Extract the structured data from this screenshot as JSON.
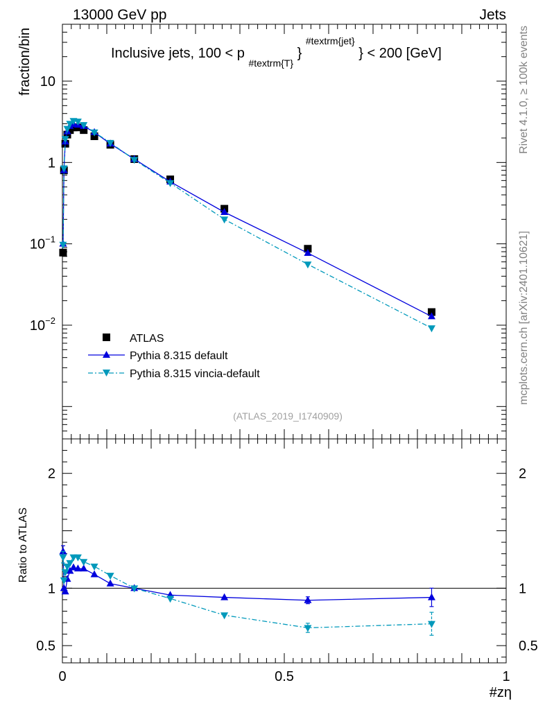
{
  "header": {
    "left": "13000 GeV pp",
    "right": "Jets"
  },
  "side_labels": {
    "rivet": "Rivet 4.1.0, ≥ 100k events",
    "mcplots": "mcplots.cern.ch [arXiv:2401.10621]"
  },
  "chart_data": {
    "type": "scatter",
    "title": "Inclusive jets, 100 < p",
    "title_sub": "#textrm{T}",
    "title_sup": "#textrm{jet}",
    "title_tail": "} < 200 [GeV]",
    "ylabel": "fraction/bin",
    "xlabel": "#zη",
    "ratio_ylabel": "Ratio to ATLAS",
    "analysis_id": "(ATLAS_2019_I1740909)",
    "xlim": [
      0,
      1
    ],
    "ylim_main": [
      0.0004,
      50
    ],
    "ylim_ratio": [
      0.35,
      2.3
    ],
    "x_ticks": [
      {
        "value": 0,
        "label": "0"
      },
      {
        "value": 0.5,
        "label": "0.5"
      },
      {
        "value": 1,
        "label": "1"
      }
    ],
    "y_ticks_main": [
      {
        "value": 10,
        "base": "10",
        "exp": ""
      },
      {
        "value": 1,
        "base": "1",
        "exp": ""
      },
      {
        "value": 0.1,
        "base": "10",
        "exp": "−1"
      },
      {
        "value": 0.01,
        "base": "10",
        "exp": "−2"
      }
    ],
    "y_ticks_ratio": [
      {
        "value": 2,
        "label": "2"
      },
      {
        "value": 1,
        "label": "1"
      },
      {
        "value": 0.5,
        "label": "0.5"
      }
    ],
    "legend": [
      {
        "name": "ATLAS",
        "marker": "square",
        "color": "#000000"
      },
      {
        "name": "Pythia 8.315 default",
        "marker": "triangle-up",
        "color": "#0000dd"
      },
      {
        "name": "Pythia 8.315 vincia-default",
        "marker": "triangle-down",
        "color": "#0099bb"
      }
    ],
    "series": [
      {
        "name": "ATLAS",
        "color": "#000000",
        "x": [
          0.0015,
          0.0035,
          0.0065,
          0.011,
          0.017,
          0.025,
          0.035,
          0.048,
          0.072,
          0.108,
          0.162,
          0.243,
          0.365,
          0.553,
          0.832
        ],
        "y": [
          0.078,
          0.8,
          1.7,
          2.2,
          2.5,
          2.7,
          2.7,
          2.5,
          2.1,
          1.65,
          1.1,
          0.62,
          0.27,
          0.087,
          0.0145
        ]
      },
      {
        "name": "Pythia 8.315 default",
        "color": "#0000dd",
        "x": [
          0.0015,
          0.0035,
          0.0065,
          0.011,
          0.017,
          0.025,
          0.035,
          0.048,
          0.072,
          0.108,
          0.162,
          0.243,
          0.365,
          0.553,
          0.832
        ],
        "y": [
          0.1,
          0.8,
          1.8,
          2.4,
          2.8,
          2.95,
          2.9,
          2.8,
          2.35,
          1.7,
          1.1,
          0.58,
          0.245,
          0.077,
          0.0128
        ],
        "ratio": [
          1.32,
          1.0,
          0.97,
          1.08,
          1.15,
          1.18,
          1.17,
          1.17,
          1.12,
          1.04,
          1.0,
          0.94,
          0.92,
          0.895,
          0.92
        ],
        "ratio_err": [
          0.05,
          0.02,
          0.02,
          0.02,
          0.02,
          0.02,
          0.02,
          0.02,
          0.02,
          0.02,
          0.02,
          0.02,
          0.02,
          0.03,
          0.08
        ]
      },
      {
        "name": "Pythia 8.315 vincia-default",
        "color": "#0099bb",
        "x": [
          0.0015,
          0.0035,
          0.0065,
          0.011,
          0.017,
          0.025,
          0.035,
          0.048,
          0.072,
          0.108,
          0.162,
          0.243,
          0.365,
          0.553,
          0.832
        ],
        "y": [
          0.098,
          0.85,
          1.95,
          2.6,
          3.0,
          3.25,
          3.2,
          2.9,
          2.35,
          1.75,
          1.08,
          0.56,
          0.2,
          0.056,
          0.0092
        ],
        "ratio": [
          1.27,
          1.07,
          1.14,
          1.19,
          1.22,
          1.27,
          1.27,
          1.23,
          1.19,
          1.11,
          1.0,
          0.91,
          0.765,
          0.655,
          0.69
        ],
        "ratio_err": [
          0.05,
          0.02,
          0.02,
          0.02,
          0.02,
          0.02,
          0.02,
          0.02,
          0.02,
          0.02,
          0.02,
          0.02,
          0.02,
          0.04,
          0.1
        ]
      }
    ]
  }
}
